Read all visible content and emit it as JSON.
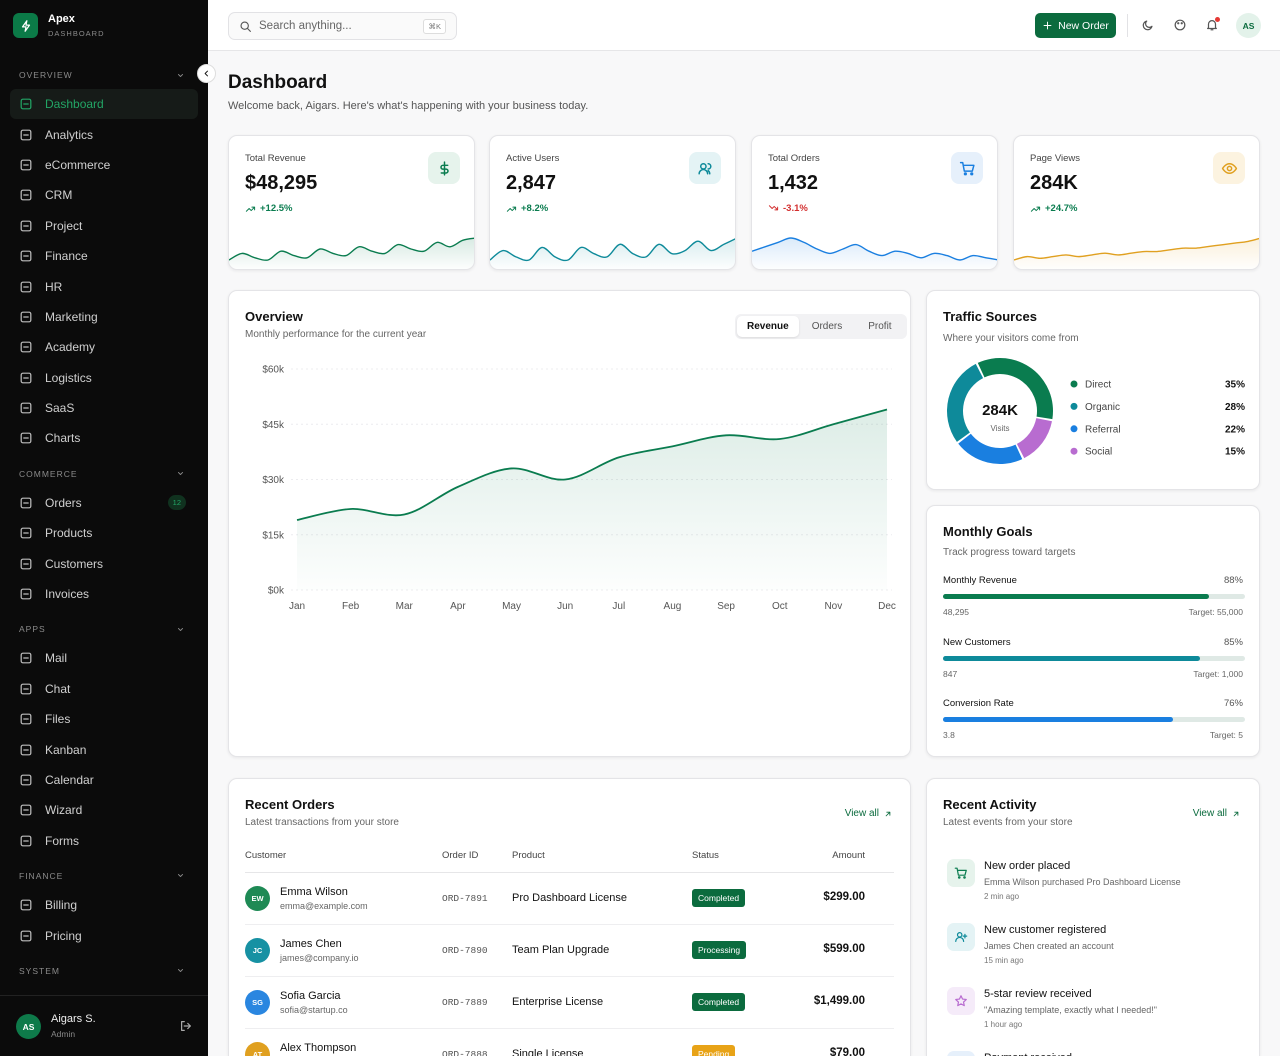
{
  "sidebar": {
    "brand": "Apex",
    "brand_sub": "DASHBOARD",
    "sections": [
      {
        "title": "OVERVIEW",
        "items": [
          {
            "label": "Dashboard",
            "active": true
          },
          {
            "label": "Analytics"
          },
          {
            "label": "eCommerce"
          },
          {
            "label": "CRM"
          },
          {
            "label": "Project"
          },
          {
            "label": "Finance"
          },
          {
            "label": "HR"
          },
          {
            "label": "Marketing"
          },
          {
            "label": "Academy"
          },
          {
            "label": "Logistics"
          },
          {
            "label": "SaaS"
          },
          {
            "label": "Charts"
          }
        ]
      },
      {
        "title": "COMMERCE",
        "items": [
          {
            "label": "Orders",
            "badge": "12"
          },
          {
            "label": "Products"
          },
          {
            "label": "Customers"
          },
          {
            "label": "Invoices"
          }
        ]
      },
      {
        "title": "APPS",
        "items": [
          {
            "label": "Mail"
          },
          {
            "label": "Chat"
          },
          {
            "label": "Files"
          },
          {
            "label": "Kanban"
          },
          {
            "label": "Calendar"
          },
          {
            "label": "Wizard"
          },
          {
            "label": "Forms"
          }
        ]
      },
      {
        "title": "FINANCE",
        "items": [
          {
            "label": "Billing"
          },
          {
            "label": "Pricing"
          }
        ]
      },
      {
        "title": "SYSTEM",
        "items": []
      }
    ],
    "user": {
      "initials": "AS",
      "name": "Aigars S.",
      "role": "Admin"
    }
  },
  "topbar": {
    "search": "Search anything...",
    "shortcut": "⌘K",
    "new_order": "New Order",
    "avatar": "AS"
  },
  "header": {
    "title": "Dashboard",
    "subtitle": "Welcome back, Aigars. Here's what's happening with your business today."
  },
  "stats": [
    {
      "label": "Total Revenue",
      "value": "$48,295",
      "change": "+12.5%",
      "up": true,
      "color": "#0a7c4f",
      "tint": "#e6f3ec",
      "trend": [
        12,
        15,
        13,
        12,
        16,
        14,
        13,
        17,
        15,
        14,
        18,
        16,
        15,
        19,
        17,
        16,
        20,
        18,
        21,
        22
      ]
    },
    {
      "label": "Active Users",
      "value": "2,847",
      "change": "+8.2%",
      "up": true,
      "color": "#0e8a9a",
      "tint": "#e4f3f5",
      "trend": [
        14,
        17,
        15,
        14,
        18,
        15,
        14,
        18,
        16,
        15,
        19,
        16,
        15,
        19,
        16,
        17,
        20,
        17,
        19,
        21
      ]
    },
    {
      "label": "Total Orders",
      "value": "1,432",
      "change": "-3.1%",
      "up": false,
      "color": "#1a7fe0",
      "tint": "#e6f0fb",
      "trend": [
        18,
        20,
        22,
        24,
        22,
        19,
        17,
        19,
        21,
        18,
        16,
        18,
        17,
        15,
        17,
        16,
        14,
        16,
        15,
        14
      ]
    },
    {
      "label": "Page Views",
      "value": "284K",
      "change": "+24.7%",
      "up": true,
      "color": "#e0a020",
      "tint": "#fcf3e0",
      "trend": [
        10,
        12,
        11,
        12,
        13,
        12,
        13,
        14,
        13,
        14,
        15,
        15,
        16,
        17,
        17,
        18,
        19,
        20,
        21,
        23
      ]
    }
  ],
  "overview": {
    "title": "Overview",
    "subtitle": "Monthly performance for the current year",
    "tabs": [
      {
        "label": "Revenue",
        "active": true
      },
      {
        "label": "Orders"
      },
      {
        "label": "Profit"
      }
    ],
    "chart_data": {
      "type": "line",
      "color": "#0a7c4f",
      "grid": true,
      "categories": [
        "Jan",
        "Feb",
        "Mar",
        "Apr",
        "May",
        "Jun",
        "Jul",
        "Aug",
        "Sep",
        "Oct",
        "Nov",
        "Dec"
      ],
      "values": [
        19000,
        22000,
        20500,
        28000,
        33000,
        30000,
        36000,
        39000,
        42000,
        41000,
        45000,
        49000
      ],
      "ylim": [
        0,
        60000
      ],
      "yticks": [
        {
          "value": 0,
          "label": "$0k"
        },
        {
          "value": 15000,
          "label": "$15k"
        },
        {
          "value": 30000,
          "label": "$30k"
        },
        {
          "value": 45000,
          "label": "$45k"
        },
        {
          "value": 60000,
          "label": "$60k"
        }
      ]
    }
  },
  "traffic": {
    "title": "Traffic Sources",
    "subtitle": "Where your visitors come from",
    "center_value": "284K",
    "center_label": "Visits",
    "chart_data": {
      "type": "pie",
      "categories": [
        "Direct",
        "Organic",
        "Referral",
        "Social"
      ],
      "values": [
        35,
        28,
        22,
        15
      ],
      "value_labels": [
        "35%",
        "28%",
        "22%",
        "15%"
      ],
      "colors": [
        "#0a7c4f",
        "#0e8a9a",
        "#1a7fe0",
        "#b86cd0"
      ]
    }
  },
  "goals": {
    "title": "Monthly Goals",
    "subtitle": "Track progress toward targets",
    "items": [
      {
        "label": "Monthly Revenue",
        "value": 88,
        "value_label": "88%",
        "current": "48,295",
        "target": "Target: 55,000",
        "color": "#0a7c4f"
      },
      {
        "label": "New Customers",
        "value": 85,
        "value_label": "85%",
        "current": "847",
        "target": "Target: 1,000",
        "color": "#0e8a9a"
      },
      {
        "label": "Conversion Rate",
        "value": 76,
        "value_label": "76%",
        "current": "3.8",
        "target": "Target: 5",
        "color": "#1a7fe0"
      }
    ]
  },
  "orders": {
    "title": "Recent Orders",
    "subtitle": "Latest transactions from your store",
    "view_all": "View all",
    "columns": [
      "Customer",
      "Order ID",
      "Product",
      "Status",
      "Amount"
    ],
    "rows": [
      {
        "initials": "EW",
        "name": "Emma Wilson",
        "email": "emma@example.com",
        "order_id": "ORD-7891",
        "product": "Pro Dashboard License",
        "status": "Completed",
        "amount": "$299.00",
        "avatar_color": "#1f8a55",
        "status_color": "#0b6b3e"
      },
      {
        "initials": "JC",
        "name": "James Chen",
        "email": "james@company.io",
        "order_id": "ORD-7890",
        "product": "Team Plan Upgrade",
        "status": "Processing",
        "amount": "$599.00",
        "avatar_color": "#1791a3",
        "status_color": "#0b6b3e"
      },
      {
        "initials": "SG",
        "name": "Sofia Garcia",
        "email": "sofia@startup.co",
        "order_id": "ORD-7889",
        "product": "Enterprise License",
        "status": "Completed",
        "amount": "$1,499.00",
        "avatar_color": "#2a86e0",
        "status_color": "#0b6b3e"
      },
      {
        "initials": "AT",
        "name": "Alex Thompson",
        "order_id": "ORD-7888",
        "product": "Single License",
        "status": "Pending",
        "amount": "$79.00",
        "avatar_color": "#e0a020",
        "status_color": "#e8a317"
      }
    ]
  },
  "activity": {
    "title": "Recent Activity",
    "subtitle": "Latest events from your store",
    "view_all": "View all",
    "items": [
      {
        "title": "New order placed",
        "description": "Emma Wilson purchased Pro Dashboard License",
        "time": "2 min ago",
        "icon_color": "#0a7c4f",
        "icon_tint": "#e6f3ec"
      },
      {
        "title": "New customer registered",
        "description": "James Chen created an account",
        "time": "15 min ago",
        "icon_color": "#0e8a9a",
        "icon_tint": "#e4f3f5"
      },
      {
        "title": "5-star review received",
        "description": "\"Amazing template, exactly what I needed!\"",
        "time": "1 hour ago",
        "icon_color": "#b86cd0",
        "icon_tint": "#f5ebf9"
      },
      {
        "title": "Payment received",
        "icon_color": "#1a7fe0",
        "icon_tint": "#e6f0fb"
      }
    ]
  }
}
